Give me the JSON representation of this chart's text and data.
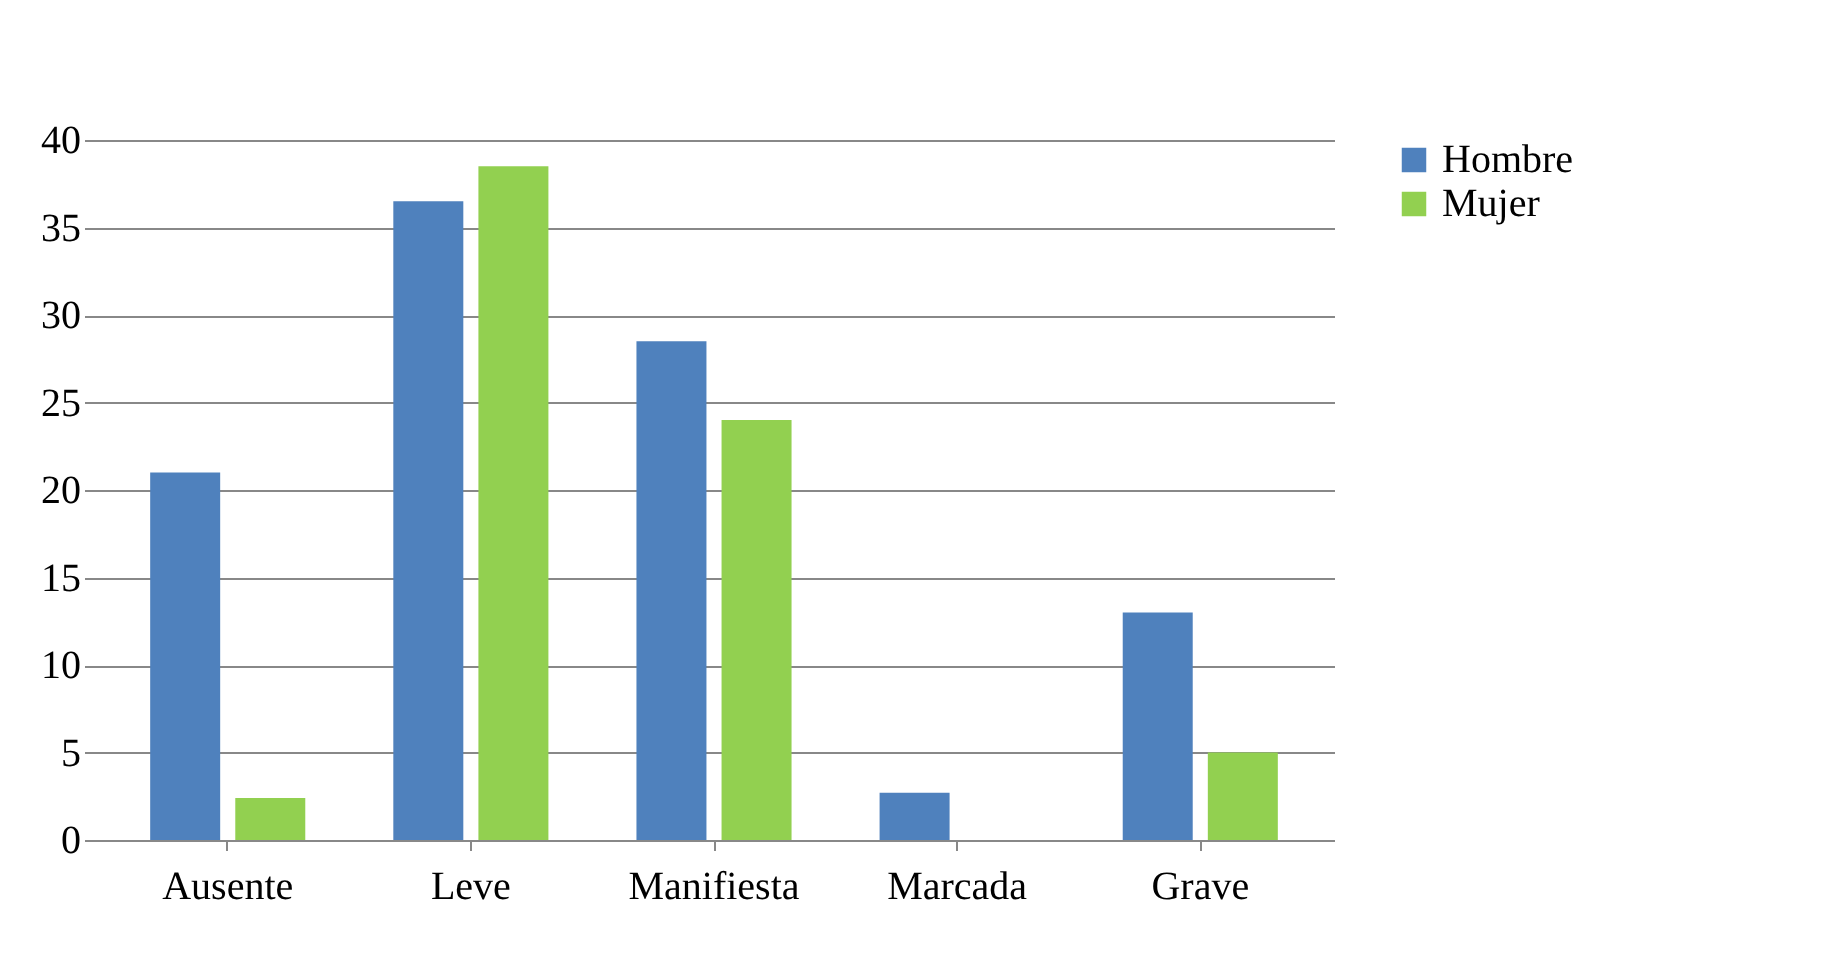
{
  "chart_data": {
    "type": "bar",
    "categories": [
      "Ausente",
      "Leve",
      "Manifiesta",
      "Marcada",
      "Grave"
    ],
    "series": [
      {
        "name": "Hombre",
        "color": "#4f81bd",
        "values": [
          21,
          36.5,
          28.5,
          2.7,
          13
        ]
      },
      {
        "name": "Mujer",
        "color": "#92d050",
        "values": [
          2.4,
          38.5,
          24,
          0,
          5
        ]
      }
    ],
    "ylim": [
      0,
      40
    ],
    "yticks": [
      0,
      5,
      10,
      15,
      20,
      25,
      30,
      35,
      40
    ],
    "grid": "y",
    "legend": "right"
  }
}
